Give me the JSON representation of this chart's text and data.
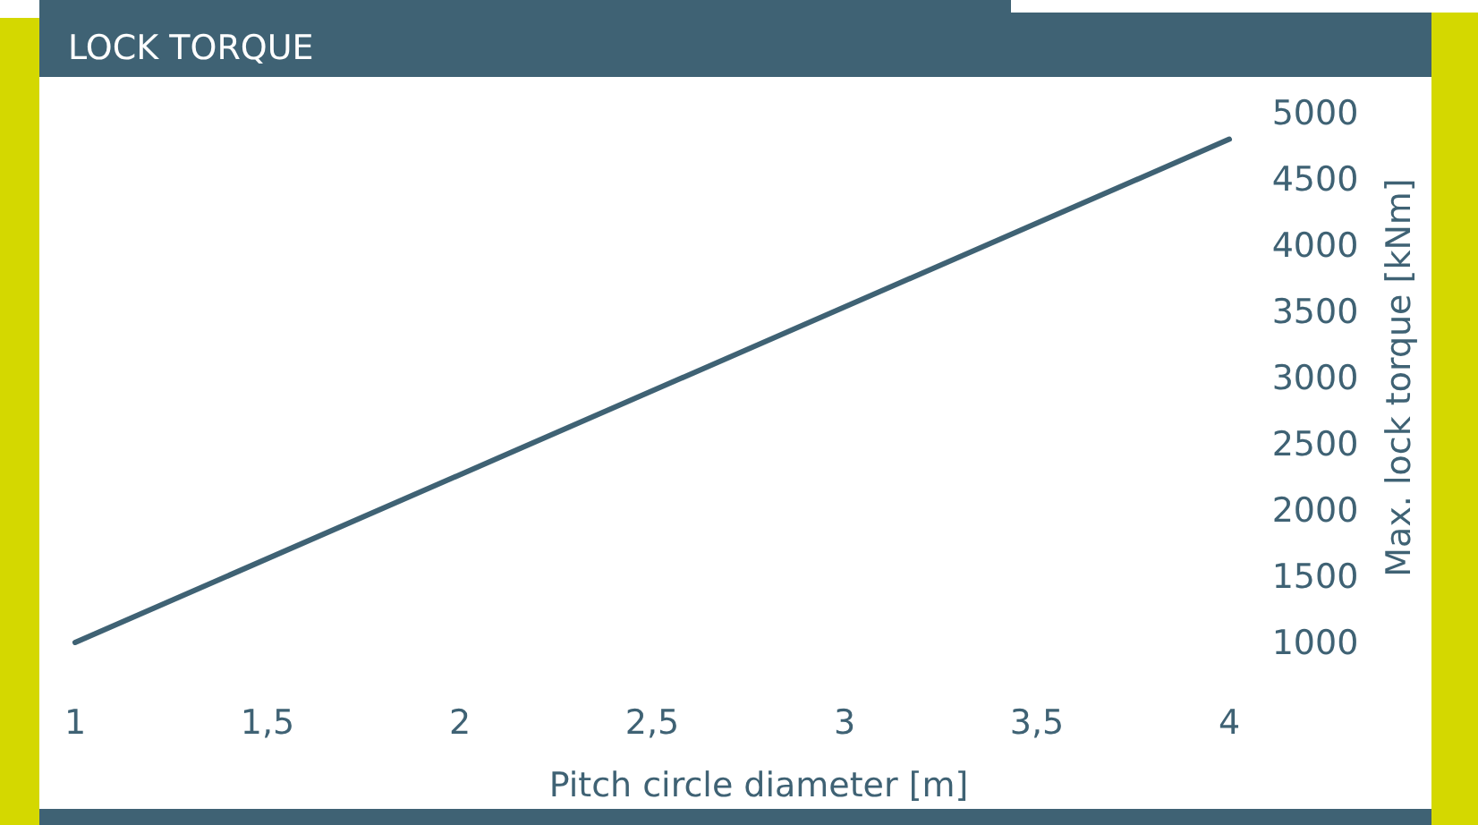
{
  "chart_data": {
    "type": "line",
    "title": "LOCK TORQUE",
    "xlabel": "Pitch circle diameter [m]",
    "ylabel": "Max. lock torque [kNm]",
    "x": [
      1,
      4
    ],
    "series": [
      {
        "color": "#3f6274",
        "values": [
          1000,
          4800
        ]
      }
    ],
    "xlim": [
      1,
      4
    ],
    "xticks": [
      1,
      {
        "value": 1.5,
        "label": "1,5"
      },
      2,
      {
        "value": 2.5,
        "label": "2,5"
      },
      3,
      {
        "value": 3.5,
        "label": "3,5"
      },
      4
    ],
    "ylim": [
      1000,
      5000
    ],
    "yticks": [
      1000,
      1500,
      2000,
      2500,
      3000,
      3500,
      4000,
      4500,
      5000
    ],
    "grid": false,
    "marker": "none",
    "line_style": "solid"
  }
}
